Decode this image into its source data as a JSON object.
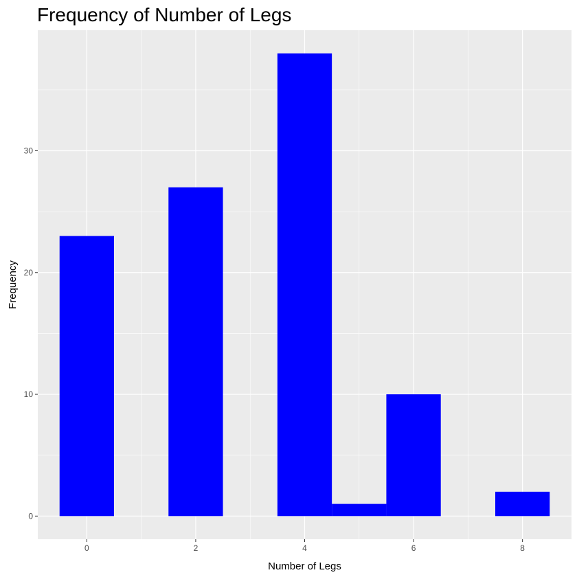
{
  "chart_data": {
    "type": "bar",
    "title": "Frequency of Number of Legs",
    "xlabel": "Number of Legs",
    "ylabel": "Frequency",
    "x": [
      0,
      2,
      4,
      5,
      6,
      8
    ],
    "values": [
      23,
      27,
      38,
      1,
      10,
      2
    ],
    "bar_width": 1,
    "xlim": [
      -0.9,
      8.9
    ],
    "ylim": [
      -1.9,
      39.9
    ],
    "x_ticks": [
      0,
      2,
      4,
      6,
      8
    ],
    "y_ticks": [
      0,
      10,
      20,
      30
    ],
    "grid": true,
    "legend": "none",
    "colors": {
      "bar_fill": "#0000ff",
      "panel_background": "#ebebeb",
      "grid_line": "#ffffff",
      "tick_text": "#4d4d4d",
      "tick_mark": "#333333"
    }
  }
}
